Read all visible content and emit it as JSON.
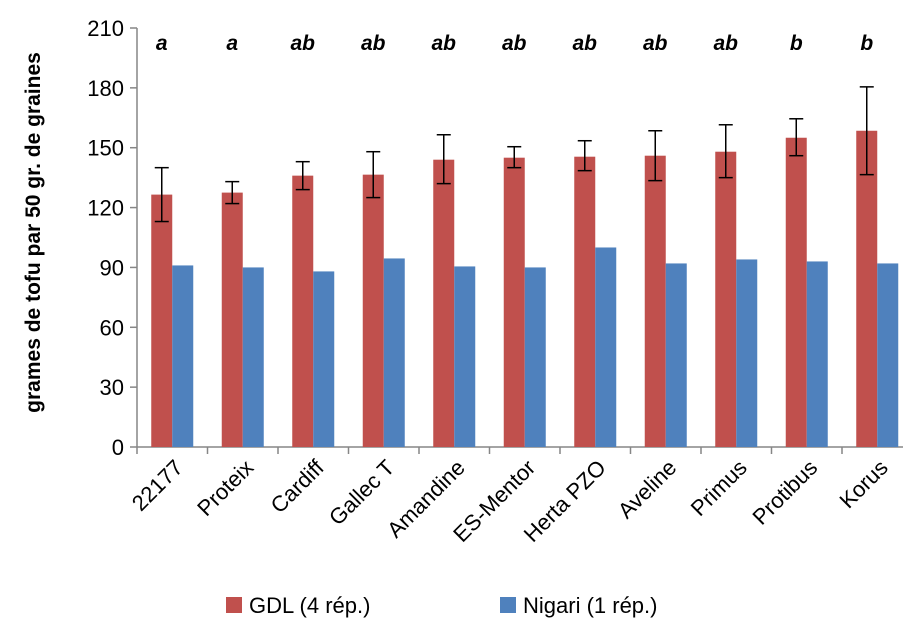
{
  "chart_data": {
    "type": "bar",
    "ylabel": "grames  de tofu par 50 gr. de graines",
    "xlabel": "",
    "ylim": [
      0,
      210
    ],
    "yticks": [
      0,
      30,
      60,
      90,
      120,
      150,
      180,
      210
    ],
    "grid": false,
    "legend_position": "bottom",
    "categories": [
      "22177",
      "Proteix",
      "Cardiff",
      "Gallec T",
      "Amandine",
      "ES-Mentor",
      "Herta PZO",
      "Aveline",
      "Primus",
      "Protibus",
      "Korus"
    ],
    "group_letters": [
      "a",
      "a",
      "ab",
      "ab",
      "ab",
      "ab",
      "ab",
      "ab",
      "ab",
      "b",
      "b"
    ],
    "series": [
      {
        "name": "GDL (4 rép.)",
        "color": "#C0504D",
        "values": [
          126.5,
          127.5,
          136,
          136.5,
          144,
          145,
          145.5,
          146,
          148,
          155,
          158.5
        ],
        "error_low": [
          113,
          122,
          129,
          125,
          132,
          140,
          138.5,
          133.5,
          135,
          146,
          136.5
        ],
        "error_high": [
          140,
          133,
          143,
          148,
          156.5,
          150.5,
          153.5,
          158.5,
          161.5,
          164.5,
          180.5
        ]
      },
      {
        "name": "Nigari (1 rép.)",
        "color": "#4F81BD",
        "values": [
          91,
          90,
          88,
          94.5,
          90.5,
          90,
          100,
          92,
          94,
          93,
          92
        ]
      }
    ]
  }
}
